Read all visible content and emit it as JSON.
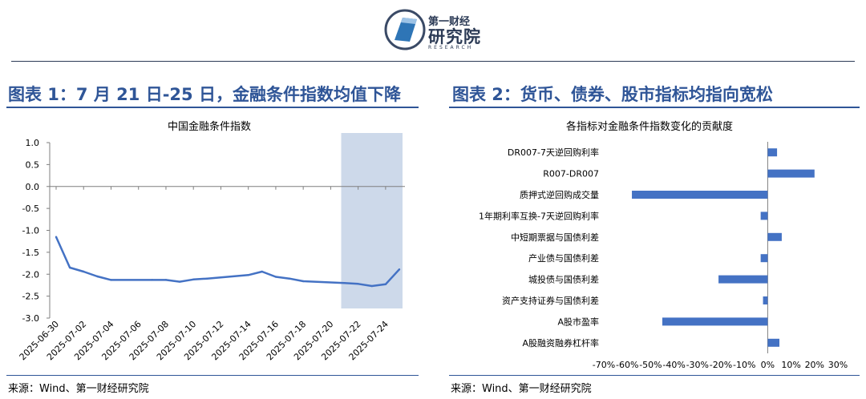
{
  "header": {
    "logo_top": "第一财经",
    "logo_main": "研究院",
    "logo_sub": "RESEARCH"
  },
  "figure1": {
    "heading": "图表 1：7 月 21 日-25 日，金融条件指数均值下降",
    "source": "来源：Wind、第一财经研究院"
  },
  "figure2": {
    "heading": "图表 2：货币、债券、股市指标均指向宽松",
    "source": "来源：Wind、第一财经研究院"
  },
  "chart_data": [
    {
      "type": "line",
      "title": "中国金融条件指数",
      "xlabel": "",
      "ylabel": "",
      "x": [
        "2025-06-30",
        "2025-07-01",
        "2025-07-02",
        "2025-07-03",
        "2025-07-04",
        "2025-07-07",
        "2025-07-08",
        "2025-07-09",
        "2025-07-10",
        "2025-07-11",
        "2025-07-14",
        "2025-07-15",
        "2025-07-16",
        "2025-07-17",
        "2025-07-18",
        "2025-07-21",
        "2025-07-22",
        "2025-07-23",
        "2025-07-24",
        "2025-07-25"
      ],
      "values": [
        -1.15,
        -1.85,
        -1.94,
        -2.05,
        -2.13,
        -2.13,
        -2.13,
        -2.17,
        -2.12,
        -2.1,
        -2.02,
        -1.94,
        -2.06,
        -2.1,
        -2.16,
        -2.2,
        -2.22,
        -2.27,
        -2.23,
        -1.89
      ],
      "x_ticks": [
        "2025-06-30",
        "2025-07-02",
        "2025-07-04",
        "2025-07-06",
        "2025-07-08",
        "2025-07-10",
        "2025-07-12",
        "2025-07-14",
        "2025-07-16",
        "2025-07-18",
        "2025-07-20",
        "2025-07-22",
        "2025-07-24"
      ],
      "y_ticks": [
        "1.0",
        "0.5",
        "0.0",
        "-0.5",
        "-1.0",
        "-1.5",
        "-2.0",
        "-2.5",
        "-3.0"
      ],
      "ylim": [
        -3.0,
        1.0
      ],
      "highlight_range": [
        "2025-07-21",
        "2025-07-25"
      ],
      "colors": {
        "line": "#4472c4",
        "highlight": "#cdd9ea"
      },
      "grid": false
    },
    {
      "type": "bar",
      "orientation": "horizontal",
      "title": "各指标对金融条件指数变化的贡献度",
      "categories": [
        "DR007-7天逆回购利率",
        "R007-DR007",
        "质押式逆回购成交量",
        "1年期利率互换-7天逆回购利率",
        "中短期票据与国债利差",
        "产业债与国债利差",
        "城投债与国债利差",
        "资产支持证券与国债利差",
        "A股市盈率",
        "A股融资融券杠杆率"
      ],
      "values": [
        4,
        20,
        -58,
        -3,
        6,
        -3,
        -21,
        -2,
        -45,
        5
      ],
      "x_ticks": [
        "-70%",
        "-60%",
        "-50%",
        "-40%",
        "-30%",
        "-20%",
        "-10%",
        "0%",
        "10%",
        "20%",
        "30%"
      ],
      "xlim": [
        -70,
        30
      ],
      "unit": "%",
      "colors": {
        "bar": "#4472c4"
      },
      "grid": false
    }
  ]
}
